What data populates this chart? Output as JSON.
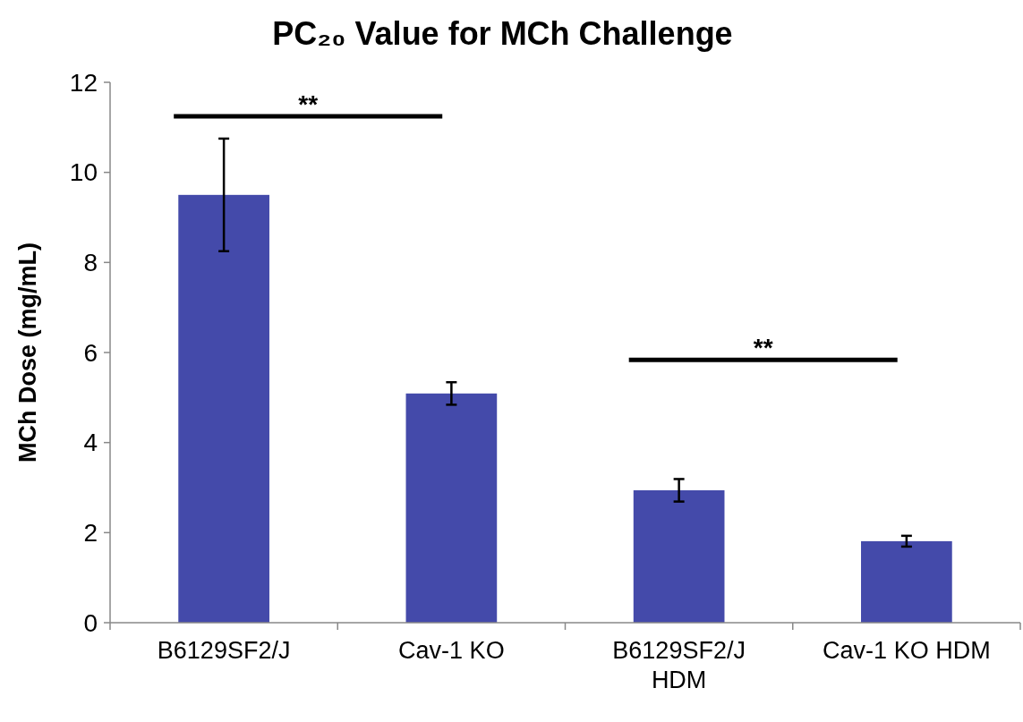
{
  "chart_data": {
    "type": "bar",
    "title": "PC₂₀ Value for MCh Challenge",
    "ylabel": "MCh Dose (mg/mL)",
    "categories": [
      "B6129SF2/J",
      "Cav-1 KO",
      "B6129SF2/J HDM",
      "Cav-1 KO HDM"
    ],
    "values": [
      9.5,
      5.09,
      2.94,
      1.81
    ],
    "errors": [
      1.25,
      0.25,
      0.25,
      0.12
    ],
    "color": "#444aaa",
    "ylim": [
      0,
      12
    ],
    "yticks": [
      0,
      2,
      4,
      6,
      8,
      10,
      12
    ],
    "grid": false,
    "legend": false,
    "annotations": [
      "**",
      "**"
    ]
  }
}
